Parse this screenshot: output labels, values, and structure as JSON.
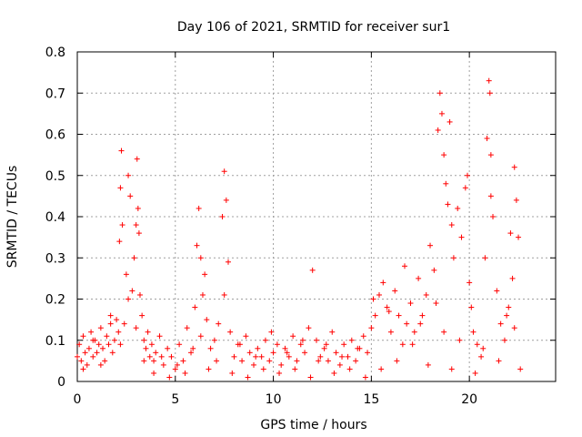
{
  "chart_data": {
    "type": "scatter",
    "title": "Day 106 of 2021, SRMTID for receiver sur1",
    "xlabel": "GPS time / hours",
    "ylabel": "SRMTID / TECUs",
    "xlim": [
      0,
      24.4
    ],
    "ylim": [
      0,
      0.8
    ],
    "grid": true,
    "marker": "+",
    "color": "#ff0000",
    "xticks": [
      0,
      5,
      10,
      15,
      20
    ],
    "xtick_labels": [
      "0",
      "5",
      "10",
      "15",
      "20"
    ],
    "yticks": [
      0,
      0.1,
      0.2,
      0.3,
      0.4,
      0.5,
      0.6,
      0.7,
      0.8
    ],
    "ytick_labels": [
      "0",
      "0.1",
      "0.2",
      "0.3",
      "0.4",
      "0.5",
      "0.6",
      "0.7",
      "0.8"
    ],
    "series": [
      {
        "name": "SRMTID",
        "x": [
          0.0,
          0.1,
          0.2,
          0.3,
          0.4,
          0.5,
          0.6,
          0.7,
          0.8,
          0.9,
          1.0,
          1.1,
          1.2,
          1.3,
          1.4,
          1.5,
          1.6,
          1.7,
          1.8,
          1.9,
          2.0,
          2.1,
          2.15,
          2.2,
          2.25,
          2.3,
          2.4,
          2.5,
          2.6,
          2.7,
          2.8,
          2.9,
          3.0,
          3.05,
          3.1,
          3.15,
          3.2,
          3.3,
          3.4,
          3.5,
          3.6,
          3.7,
          3.8,
          3.9,
          4.0,
          4.2,
          4.4,
          4.6,
          4.8,
          5.0,
          5.2,
          5.4,
          5.6,
          5.8,
          6.0,
          6.1,
          6.2,
          6.3,
          6.4,
          6.5,
          6.6,
          6.8,
          7.0,
          7.2,
          7.4,
          7.5,
          7.6,
          7.7,
          7.8,
          8.0,
          8.2,
          8.4,
          8.6,
          8.8,
          9.0,
          9.2,
          9.4,
          9.6,
          9.8,
          10.0,
          10.2,
          10.4,
          10.6,
          10.8,
          11.0,
          11.2,
          11.4,
          11.6,
          11.8,
          12.0,
          12.2,
          12.4,
          12.6,
          12.8,
          13.0,
          13.2,
          13.4,
          13.6,
          13.8,
          14.0,
          14.2,
          14.4,
          14.6,
          14.8,
          15.0,
          15.2,
          15.4,
          15.6,
          15.8,
          16.0,
          16.2,
          16.4,
          16.6,
          16.8,
          17.0,
          17.2,
          17.4,
          17.6,
          17.8,
          18.0,
          18.2,
          18.4,
          18.5,
          18.6,
          18.7,
          18.8,
          18.9,
          19.0,
          19.1,
          19.2,
          19.4,
          19.6,
          19.8,
          20.0,
          20.1,
          20.2,
          20.4,
          20.6,
          20.8,
          20.9,
          21.0,
          21.05,
          21.1,
          21.2,
          21.4,
          21.6,
          21.8,
          22.0,
          22.1,
          22.2,
          22.3,
          22.4,
          22.5,
          22.6,
          0.3,
          0.8,
          1.2,
          1.7,
          2.2,
          2.6,
          3.0,
          3.4,
          3.9,
          4.3,
          4.7,
          5.1,
          5.5,
          5.9,
          6.3,
          6.7,
          7.1,
          7.5,
          7.9,
          8.3,
          8.7,
          9.1,
          9.5,
          9.9,
          10.3,
          10.7,
          11.1,
          11.5,
          11.9,
          12.3,
          12.7,
          13.1,
          13.5,
          13.9,
          14.3,
          14.7,
          15.1,
          15.5,
          15.9,
          16.3,
          16.7,
          17.1,
          17.5,
          17.9,
          18.3,
          18.7,
          19.1,
          19.5,
          19.9,
          20.3,
          20.7,
          21.1,
          21.5,
          21.9,
          22.3
        ],
        "y": [
          0.06,
          0.09,
          0.05,
          0.11,
          0.07,
          0.04,
          0.08,
          0.12,
          0.06,
          0.1,
          0.07,
          0.09,
          0.13,
          0.08,
          0.05,
          0.11,
          0.09,
          0.14,
          0.07,
          0.1,
          0.15,
          0.12,
          0.34,
          0.47,
          0.56,
          0.38,
          0.14,
          0.26,
          0.5,
          0.45,
          0.22,
          0.3,
          0.38,
          0.54,
          0.42,
          0.36,
          0.21,
          0.16,
          0.1,
          0.08,
          0.12,
          0.06,
          0.09,
          0.05,
          0.07,
          0.11,
          0.04,
          0.08,
          0.06,
          0.03,
          0.09,
          0.05,
          0.13,
          0.07,
          0.18,
          0.33,
          0.42,
          0.3,
          0.21,
          0.26,
          0.15,
          0.08,
          0.1,
          0.14,
          0.4,
          0.51,
          0.44,
          0.29,
          0.12,
          0.06,
          0.09,
          0.05,
          0.11,
          0.07,
          0.04,
          0.08,
          0.06,
          0.1,
          0.05,
          0.07,
          0.09,
          0.04,
          0.08,
          0.06,
          0.11,
          0.05,
          0.09,
          0.07,
          0.13,
          0.27,
          0.1,
          0.06,
          0.08,
          0.05,
          0.12,
          0.07,
          0.04,
          0.09,
          0.06,
          0.1,
          0.05,
          0.08,
          0.11,
          0.07,
          0.13,
          0.16,
          0.21,
          0.24,
          0.18,
          0.12,
          0.22,
          0.16,
          0.09,
          0.14,
          0.19,
          0.12,
          0.25,
          0.16,
          0.21,
          0.33,
          0.27,
          0.61,
          0.7,
          0.65,
          0.55,
          0.48,
          0.43,
          0.63,
          0.38,
          0.3,
          0.42,
          0.35,
          0.47,
          0.24,
          0.18,
          0.12,
          0.09,
          0.06,
          0.3,
          0.59,
          0.73,
          0.7,
          0.45,
          0.4,
          0.22,
          0.14,
          0.1,
          0.18,
          0.36,
          0.25,
          0.52,
          0.44,
          0.35,
          0.03,
          0.03,
          0.1,
          0.04,
          0.16,
          0.09,
          0.2,
          0.13,
          0.05,
          0.02,
          0.06,
          0.01,
          0.04,
          0.02,
          0.08,
          0.11,
          0.03,
          0.05,
          0.21,
          0.02,
          0.09,
          0.01,
          0.06,
          0.03,
          0.12,
          0.02,
          0.07,
          0.03,
          0.1,
          0.01,
          0.05,
          0.09,
          0.02,
          0.06,
          0.03,
          0.08,
          0.01,
          0.2,
          0.03,
          0.17,
          0.05,
          0.28,
          0.09,
          0.14,
          0.04,
          0.19,
          0.12,
          0.03,
          0.1,
          0.5,
          0.02,
          0.08,
          0.55,
          0.05,
          0.16,
          0.13
        ]
      }
    ]
  }
}
